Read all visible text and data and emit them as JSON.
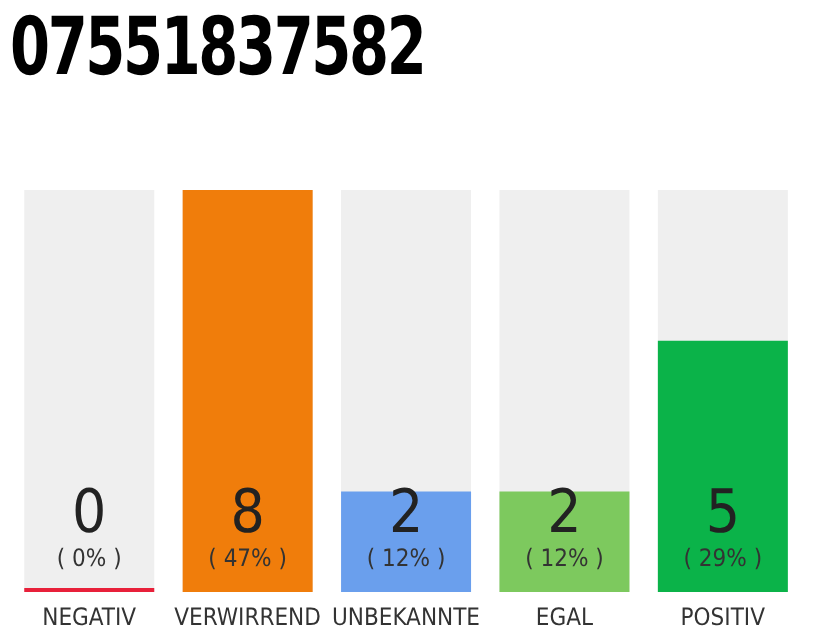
{
  "chart_data": {
    "type": "bar",
    "title": "07551837582",
    "categories": [
      "NEGATIV",
      "VERWIRREND",
      "UNBEKANNTE",
      "EGAL",
      "POSITIV"
    ],
    "values": [
      0,
      8,
      2,
      2,
      5
    ],
    "colors": [
      "#e8203a",
      "#f07d0b",
      "#6a9fed",
      "#7dc95e",
      "#0bb349"
    ],
    "tick_labels": "x",
    "value_labels": [
      "0",
      "8",
      "2",
      "2",
      "5"
    ],
    "annotations": [
      "( 0% )",
      "( 47% )",
      "( 12% )",
      "( 12% )",
      "( 29% )"
    ]
  }
}
